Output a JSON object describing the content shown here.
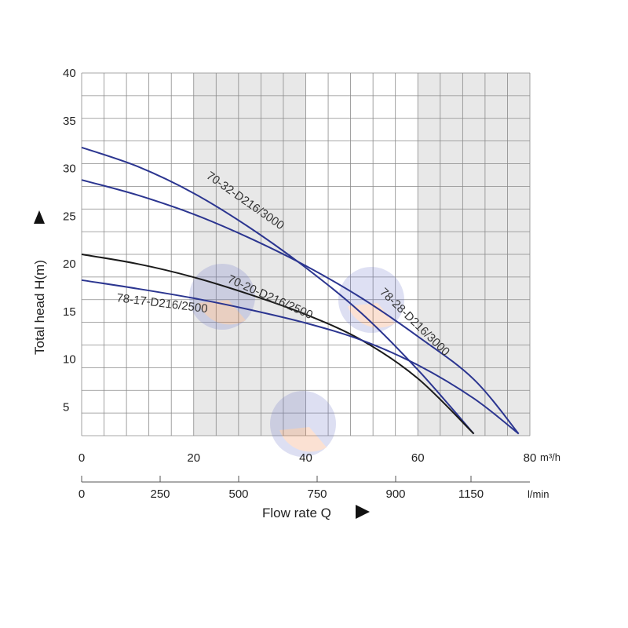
{
  "chart_data": {
    "type": "line",
    "ylabel": "Total head H(m)",
    "xlabel": "Flow rate Q",
    "x_unit": "m³/h",
    "x2_unit": "l/min",
    "xlim": [
      0,
      80
    ],
    "ylim": [
      2,
      40
    ],
    "x_ticks": [
      "0",
      "20",
      "40",
      "60",
      "80"
    ],
    "x2_ticks": [
      "0",
      "250",
      "500",
      "750",
      "900",
      "1150"
    ],
    "y_ticks": [
      "5",
      "10",
      "15",
      "20",
      "25",
      "30",
      "35",
      "40"
    ],
    "grid": true,
    "series": [
      {
        "name": "70-32-D216/3000",
        "color": "#2b3590",
        "x": [
          0,
          10,
          20,
          30,
          40,
          50,
          60,
          70
        ],
        "y": [
          32.2,
          30.2,
          27.4,
          23.8,
          19.6,
          14.8,
          8.9,
          2.2
        ]
      },
      {
        "name": "78-28-D216/3000",
        "color": "#2b3590",
        "x": [
          0,
          10,
          20,
          30,
          40,
          50,
          60,
          70,
          78
        ],
        "y": [
          28.8,
          27.2,
          25.2,
          22.7,
          19.8,
          16.4,
          12.4,
          7.9,
          2.2
        ]
      },
      {
        "name": "70-20-D216/2500",
        "color": "#1a1a1a",
        "x": [
          0,
          10,
          20,
          30,
          40,
          50,
          60,
          70
        ],
        "y": [
          21.0,
          20.0,
          18.6,
          16.8,
          14.7,
          12.0,
          8.0,
          2.2
        ]
      },
      {
        "name": "78-17-D216/2500",
        "color": "#2b3590",
        "x": [
          0,
          10,
          20,
          30,
          40,
          50,
          60,
          70,
          78
        ],
        "y": [
          18.3,
          17.4,
          16.4,
          15.2,
          13.8,
          12.0,
          9.4,
          5.9,
          2.2
        ]
      }
    ],
    "labels": [
      {
        "series": "70-32-D216/3000",
        "text": "70-32-D216/3000"
      },
      {
        "series": "78-28-D216/3000",
        "text": "78-28-D216/3000"
      },
      {
        "series": "70-20-D216/2500",
        "text": "70-20-D216/2500"
      },
      {
        "series": "78-17-D216/2500",
        "text": "78-17-D216/2500"
      }
    ]
  }
}
